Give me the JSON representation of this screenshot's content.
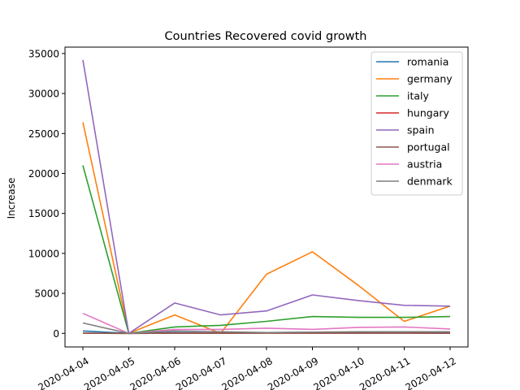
{
  "chart_data": {
    "type": "line",
    "title": "Countries Recovered covid growth",
    "xlabel": "",
    "ylabel": "Increase",
    "x": [
      "2020-04-04",
      "2020-04-05",
      "2020-04-06",
      "2020-04-07",
      "2020-04-08",
      "2020-04-09",
      "2020-04-10",
      "2020-04-11",
      "2020-04-12"
    ],
    "yticks": [
      0,
      5000,
      10000,
      15000,
      20000,
      25000,
      30000,
      35000
    ],
    "ylim": [
      -1700,
      35800
    ],
    "grid": false,
    "legend_position": "top-right",
    "series": [
      {
        "name": "romania",
        "color": "#1f77b4",
        "values": [
          300,
          0,
          100,
          50,
          100,
          120,
          100,
          130,
          100
        ]
      },
      {
        "name": "germany",
        "color": "#ff7f0e",
        "values": [
          26400,
          0,
          2300,
          0,
          7400,
          10200,
          6000,
          1500,
          3400
        ]
      },
      {
        "name": "italy",
        "color": "#2ca02c",
        "values": [
          21000,
          0,
          800,
          1000,
          1500,
          2100,
          2000,
          2000,
          2100
        ]
      },
      {
        "name": "hungary",
        "color": "#d62728",
        "values": [
          20,
          0,
          15,
          20,
          25,
          20,
          20,
          25,
          20
        ]
      },
      {
        "name": "spain",
        "color": "#9467bd",
        "values": [
          34200,
          0,
          3800,
          2300,
          2800,
          4800,
          4100,
          3500,
          3400
        ]
      },
      {
        "name": "portugal",
        "color": "#8c564b",
        "values": [
          20,
          0,
          20,
          20,
          40,
          30,
          30,
          40,
          10
        ]
      },
      {
        "name": "austria",
        "color": "#e377c2",
        "values": [
          2500,
          0,
          500,
          500,
          650,
          500,
          750,
          800,
          550
        ]
      },
      {
        "name": "denmark",
        "color": "#7f7f7f",
        "values": [
          1300,
          0,
          300,
          200,
          100,
          150,
          200,
          200,
          200
        ]
      }
    ]
  }
}
